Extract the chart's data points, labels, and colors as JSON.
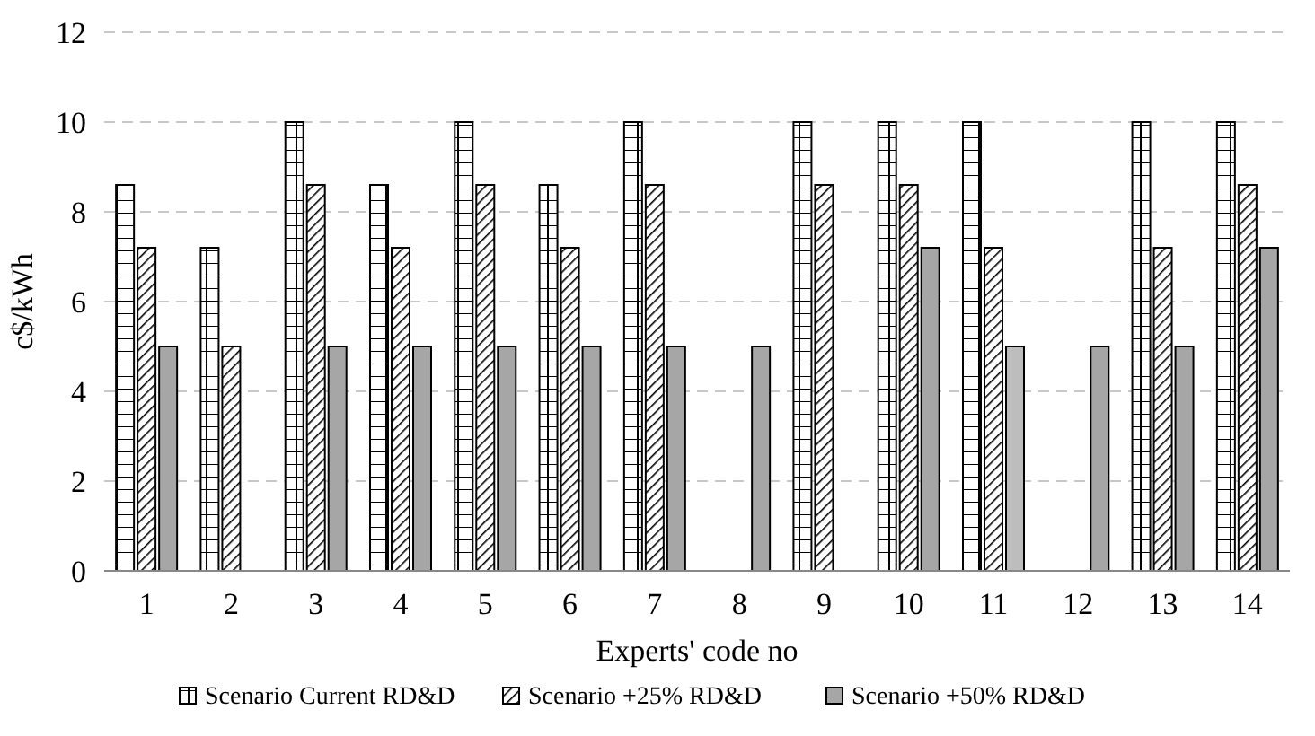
{
  "chart_data": {
    "type": "bar",
    "xlabel": "Experts' code no",
    "ylabel": "c$/kWh",
    "categories": [
      "1",
      "2",
      "3",
      "4",
      "5",
      "6",
      "7",
      "8",
      "9",
      "10",
      "11",
      "12",
      "13",
      "14"
    ],
    "series": [
      {
        "name": "Scenario Current RD&D",
        "color": "#ffffff",
        "values": [
          8.6,
          7.2,
          10,
          8.6,
          10,
          8.6,
          10,
          null,
          10,
          10,
          10,
          null,
          10,
          10
        ]
      },
      {
        "name": "Scenario +25% RD&D",
        "color": "#ffffff",
        "values": [
          7.2,
          5,
          8.6,
          7.2,
          8.6,
          7.2,
          8.6,
          null,
          8.6,
          8.6,
          7.2,
          null,
          7.2,
          8.6
        ]
      },
      {
        "name": "Scenario +50% RD&D",
        "color": "#a6a6a6",
        "colors": [
          "#a6a6a6",
          "#a6a6a6",
          "#a6a6a6",
          "#a6a6a6",
          "#a6a6a6",
          "#a6a6a6",
          "#a6a6a6",
          "#a6a6a6",
          "#a6a6a6",
          "#a6a6a6",
          "#bdbdbd",
          "#a6a6a6",
          "#a6a6a6",
          "#a6a6a6"
        ],
        "values": [
          5,
          null,
          5,
          5,
          5,
          5,
          5,
          5,
          null,
          7.2,
          5,
          5,
          5,
          7.2
        ]
      }
    ],
    "ylim": [
      0,
      12
    ],
    "yticks": [
      0,
      2,
      4,
      6,
      8,
      10,
      12
    ],
    "grid": "y",
    "legend": "bottom"
  }
}
